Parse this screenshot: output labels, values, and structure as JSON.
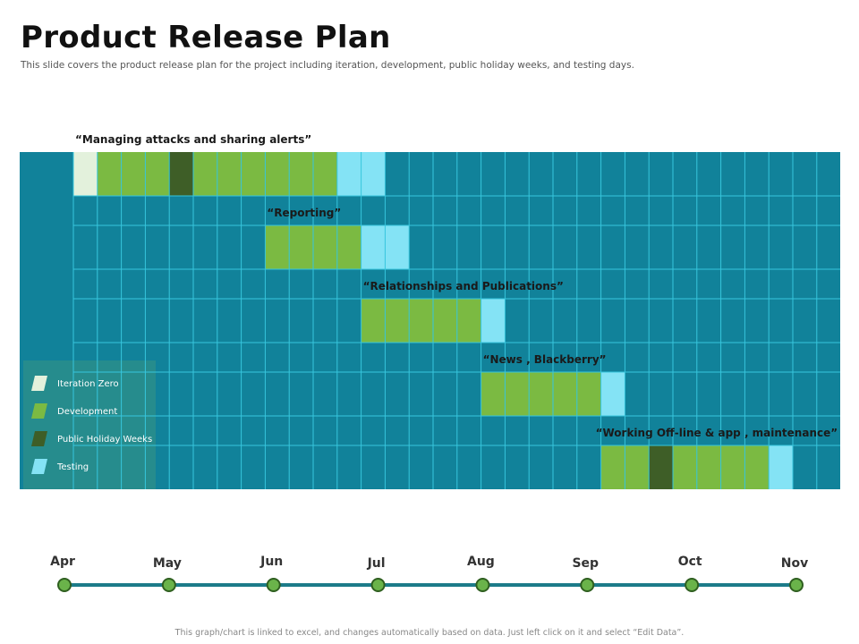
{
  "slide": {
    "title": "Product Release Plan",
    "subtitle": "This slide covers the product release plan for the project including iteration, development, public holiday weeks, and testing days.",
    "footer": "This graph/chart is linked to excel, and changes automatically based on data. Just left click on it and select “Edit Data”."
  },
  "colors": {
    "grid_background": "#11829a",
    "grid_lines": "#37c6dd",
    "legend_panel": "#2a8e8b",
    "timeline_line": "#1c7b89",
    "timeline_dot": "#6ab34a",
    "timeline_dot_border": "#2f5f20"
  },
  "chart_data": {
    "type": "gantt",
    "time_unit": "week",
    "categories": [
      "Iteration Zero",
      "Development",
      "Public Holiday Weeks",
      "Testing"
    ],
    "category_colors": [
      "#e3f1dc",
      "#7bba42",
      "#3e5e27",
      "#84e3f5"
    ],
    "tasks": [
      {
        "name": "“Managing attacks and sharing alerts”",
        "segments": [
          {
            "category": 0,
            "start_week": 0,
            "weeks": 1
          },
          {
            "category": 1,
            "start_week": 1,
            "weeks": 3
          },
          {
            "category": 2,
            "start_week": 4,
            "weeks": 1
          },
          {
            "category": 1,
            "start_week": 5,
            "weeks": 6
          },
          {
            "category": 3,
            "start_week": 11,
            "weeks": 2
          }
        ]
      },
      {
        "name": "“Reporting”",
        "segments": [
          {
            "category": 1,
            "start_week": 8,
            "weeks": 4
          },
          {
            "category": 3,
            "start_week": 12,
            "weeks": 2
          }
        ]
      },
      {
        "name": "“Relationships and Publications”",
        "segments": [
          {
            "category": 1,
            "start_week": 12,
            "weeks": 5
          },
          {
            "category": 3,
            "start_week": 17,
            "weeks": 1
          }
        ]
      },
      {
        "name": "“News , Blackberry”",
        "segments": [
          {
            "category": 1,
            "start_week": 17,
            "weeks": 5
          },
          {
            "category": 3,
            "start_week": 22,
            "weeks": 1
          }
        ]
      },
      {
        "name": "“Working Off-line & app , maintenance”",
        "segments": [
          {
            "category": 1,
            "start_week": 22,
            "weeks": 2
          },
          {
            "category": 2,
            "start_week": 24,
            "weeks": 1
          },
          {
            "category": 1,
            "start_week": 25,
            "weeks": 4
          },
          {
            "category": 3,
            "start_week": 29,
            "weeks": 1
          }
        ]
      }
    ],
    "total_weeks": 32,
    "legend": {
      "items": [
        "Iteration Zero",
        "Development",
        "Public Holiday Weeks",
        "Testing"
      ]
    },
    "timeline": {
      "months": [
        "Apr",
        "May",
        "Jun",
        "Jul",
        "Aug",
        "Sep",
        "Oct",
        "Nov"
      ]
    }
  }
}
